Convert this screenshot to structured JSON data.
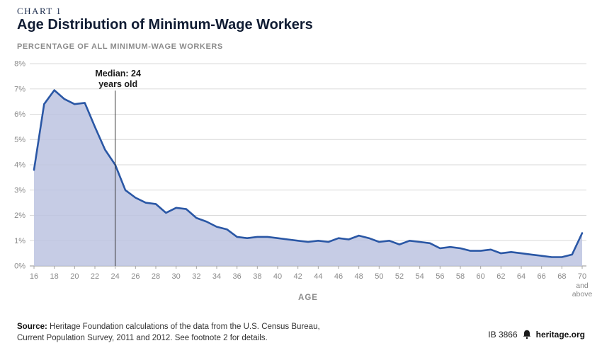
{
  "header": {
    "kicker": "CHART 1",
    "title": "Age Distribution of Minimum-Wage Workers",
    "subtitle": "PERCENTAGE OF ALL MINIMUM-WAGE WORKERS"
  },
  "chart_data": {
    "type": "area",
    "title": "Age Distribution of Minimum-Wage Workers",
    "xlabel": "AGE",
    "ylabel": "PERCENTAGE OF ALL MINIMUM-WAGE WORKERS",
    "ylim": [
      0,
      8
    ],
    "y_tick_labels": [
      "0%",
      "1%",
      "2%",
      "3%",
      "4%",
      "5%",
      "6%",
      "7%",
      "8%"
    ],
    "x_tick_labels": [
      16,
      18,
      20,
      22,
      24,
      26,
      28,
      30,
      32,
      34,
      36,
      38,
      40,
      42,
      44,
      46,
      48,
      50,
      52,
      54,
      56,
      58,
      60,
      62,
      64,
      66,
      68,
      70
    ],
    "x_last_tick_note_lines": [
      "and",
      "above"
    ],
    "grid": true,
    "legend": "none",
    "x": [
      16,
      17,
      18,
      19,
      20,
      21,
      22,
      23,
      24,
      25,
      26,
      27,
      28,
      29,
      30,
      31,
      32,
      33,
      34,
      35,
      36,
      37,
      38,
      39,
      40,
      41,
      42,
      43,
      44,
      45,
      46,
      47,
      48,
      49,
      50,
      51,
      52,
      53,
      54,
      55,
      56,
      57,
      58,
      59,
      60,
      61,
      62,
      63,
      64,
      65,
      66,
      67,
      68,
      69,
      70
    ],
    "values": [
      3.8,
      6.4,
      6.95,
      6.6,
      6.4,
      6.45,
      5.5,
      4.6,
      4.0,
      3.0,
      2.7,
      2.5,
      2.45,
      2.1,
      2.3,
      2.25,
      1.9,
      1.75,
      1.55,
      1.45,
      1.15,
      1.1,
      1.15,
      1.15,
      1.1,
      1.05,
      1.0,
      0.95,
      1.0,
      0.95,
      1.1,
      1.05,
      1.2,
      1.1,
      0.95,
      1.0,
      0.85,
      1.0,
      0.95,
      0.9,
      0.7,
      0.75,
      0.7,
      0.6,
      0.6,
      0.65,
      0.5,
      0.55,
      0.5,
      0.45,
      0.4,
      0.35,
      0.35,
      0.45,
      1.3
    ],
    "annotation": {
      "x": 24,
      "line1": "Median: 24",
      "line2": "years old"
    },
    "colors": {
      "line": "#2a57a5",
      "fill": "#bcc3e1",
      "grid": "#d9d9d9",
      "axis": "#a6a6a6",
      "tick_text": "#8a8a8a",
      "annotation_text": "#1a1a1a"
    }
  },
  "footer": {
    "source_label": "Source:",
    "source_rest_line1": " Heritage Foundation calculations of the data from the U.S. Census Bureau,",
    "source_line2": "Current Population Survey, 2011 and 2012. See footnote 2 for details.",
    "doc_id": "IB 3866",
    "brand": "heritage.org"
  }
}
